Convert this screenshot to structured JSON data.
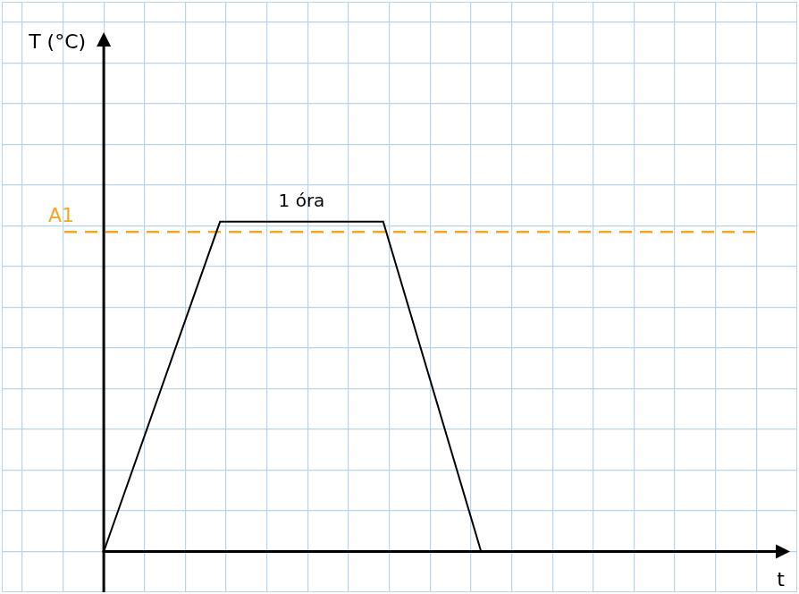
{
  "chart_data": {
    "type": "line",
    "x_label": "t",
    "y_label": "T (°C)",
    "x": [
      0,
      2.85,
      6.85,
      9.25
    ],
    "values": [
      0,
      8.1,
      8.1,
      0
    ],
    "color": "#000000",
    "xlim": [
      -2.5,
      17
    ],
    "ylim": [
      -1,
      13.5
    ],
    "xticks": [
      -2,
      -1,
      0,
      1,
      2,
      3,
      4,
      5,
      6,
      7,
      8,
      9,
      10,
      11,
      12,
      13,
      14,
      15,
      16,
      17
    ],
    "yticks": [
      -1,
      0,
      1,
      2,
      3,
      4,
      5,
      6,
      7,
      8,
      9,
      10,
      11,
      12,
      13
    ],
    "grid": true,
    "tick_labels": false,
    "annotations": [
      {
        "text": "A1",
        "y": 7.85,
        "color": "#f5a623",
        "line_style": "dashed"
      },
      {
        "text": "1 óra",
        "x": 4.85,
        "y": 8.1
      }
    ]
  }
}
